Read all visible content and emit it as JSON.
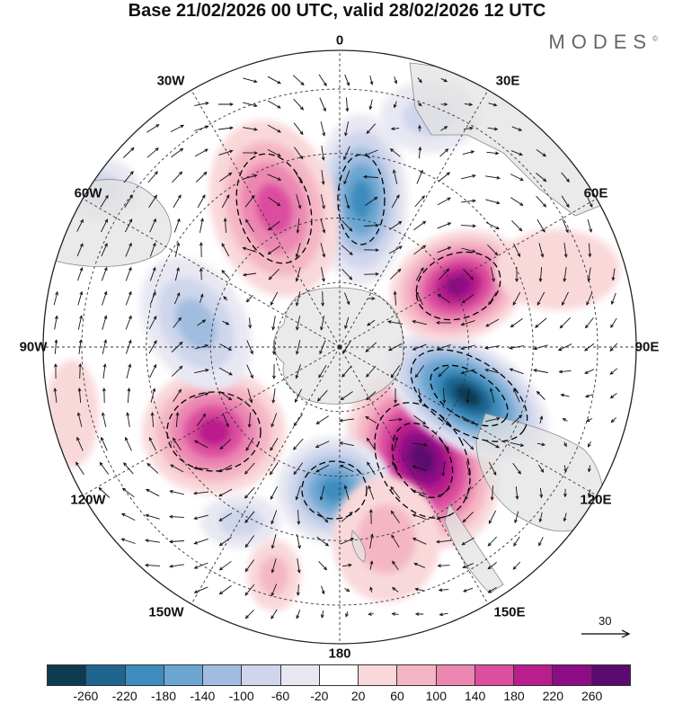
{
  "title": "Base 21/02/2026 00 UTC, valid 28/02/2026 12 UTC",
  "brand": {
    "name": "MODES",
    "mark": "©"
  },
  "longitude_labels": [
    "0",
    "30E",
    "60E",
    "90E",
    "120E",
    "150E",
    "180",
    "150W",
    "120W",
    "90W",
    "60W",
    "30W"
  ],
  "reference_vector": {
    "value": "30"
  },
  "colorbar": {
    "ticks": [
      "-260",
      "-220",
      "-180",
      "-140",
      "-100",
      "-60",
      "-20",
      "20",
      "60",
      "100",
      "140",
      "180",
      "220",
      "260"
    ],
    "colors": [
      "#0e3a52",
      "#1f6590",
      "#3e8cbd",
      "#6ba6d1",
      "#a0bde0",
      "#cfd6ec",
      "#e8e8f3",
      "#ffffff",
      "#f9d8da",
      "#f4b6c4",
      "#ec87b2",
      "#dc4e9f",
      "#ba1e8c",
      "#8c0d85",
      "#5a0b6d"
    ]
  },
  "map_colors": {
    "land": "#e3e3e3",
    "land_edge": "#8a8a8a",
    "grid": "#333333",
    "contour": "#000000"
  }
}
